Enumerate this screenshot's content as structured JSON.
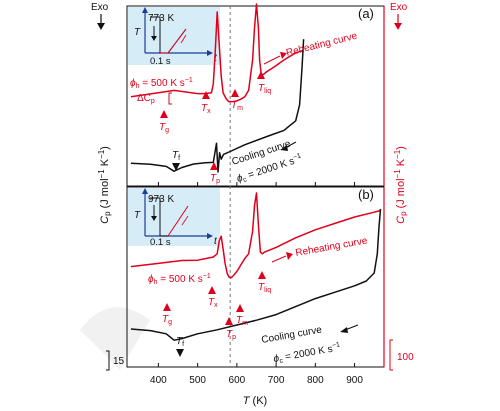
{
  "colors": {
    "reheat": "#e0001b",
    "cool": "#111111",
    "inset_bg": "#d6ecf6",
    "inset_axis": "#1f3c99"
  },
  "chart_data": [
    {
      "type": "line",
      "panel_label": "(a)",
      "xlim": [
        320,
        975
      ],
      "x_ticks": [
        400,
        500,
        600,
        700,
        800,
        900
      ],
      "vline_x": 583,
      "series": [
        {
          "name": "Reheating curve",
          "color": "#e0001b",
          "x": [
            330,
            400,
            440,
            470,
            500,
            520,
            535,
            540,
            545,
            550,
            555,
            560,
            565,
            570,
            575,
            580,
            590,
            600,
            610,
            620,
            630,
            640,
            645,
            650,
            655,
            658,
            662,
            668,
            675,
            700,
            720,
            750,
            770
          ],
          "y": [
            0.47,
            0.495,
            0.51,
            0.5,
            0.49,
            0.49,
            0.495,
            0.55,
            0.76,
            1.0,
            0.8,
            0.6,
            0.495,
            0.47,
            0.45,
            0.44,
            0.44,
            0.445,
            0.455,
            0.47,
            0.51,
            0.7,
            0.9,
            1.05,
            0.9,
            0.7,
            0.61,
            0.61,
            0.625,
            0.665,
            0.7,
            0.745,
            0.76
          ]
        },
        {
          "name": "Cooling curve",
          "color": "#111111",
          "x": [
            330,
            380,
            420,
            440,
            460,
            490,
            520,
            540,
            548,
            552,
            556,
            560,
            566,
            580,
            620,
            680,
            720,
            750,
            760,
            766,
            770
          ],
          "y": [
            0.055,
            0.048,
            0.035,
            0.005,
            0.028,
            0.05,
            0.058,
            0.06,
            0.18,
            0.0,
            0.12,
            0.08,
            0.11,
            0.125,
            0.17,
            0.225,
            0.26,
            0.32,
            0.42,
            0.65,
            0.83
          ]
        }
      ]
    },
    {
      "type": "line",
      "panel_label": "(b)",
      "xlim": [
        320,
        975
      ],
      "x_ticks": [
        400,
        500,
        600,
        700,
        800,
        900
      ],
      "vline_x": 583,
      "series": [
        {
          "name": "Reheating curve",
          "color": "#e0001b",
          "x": [
            330,
            400,
            460,
            500,
            520,
            540,
            550,
            555,
            560,
            565,
            570,
            575,
            580,
            585,
            590,
            600,
            610,
            620,
            630,
            640,
            645,
            650,
            655,
            660,
            665,
            670,
            700,
            750,
            800,
            850,
            900,
            950,
            965
          ],
          "y": [
            0.54,
            0.56,
            0.578,
            0.58,
            0.59,
            0.6,
            0.62,
            0.7,
            0.73,
            0.65,
            0.56,
            0.5,
            0.475,
            0.47,
            0.48,
            0.51,
            0.55,
            0.59,
            0.62,
            0.76,
            0.92,
            1.0,
            0.8,
            0.63,
            0.62,
            0.63,
            0.66,
            0.72,
            0.77,
            0.81,
            0.85,
            0.88,
            0.89
          ]
        },
        {
          "name": "Cooling curve",
          "color": "#111111",
          "x": [
            330,
            380,
            420,
            440,
            460,
            500,
            550,
            600,
            650,
            700,
            750,
            800,
            850,
            900,
            930,
            950,
            958,
            962,
            966
          ],
          "y": [
            0.15,
            0.14,
            0.12,
            0.08,
            0.09,
            0.12,
            0.145,
            0.175,
            0.205,
            0.24,
            0.29,
            0.34,
            0.38,
            0.42,
            0.45,
            0.5,
            0.62,
            0.78,
            0.9
          ]
        }
      ]
    }
  ],
  "panel_a": {
    "label": "(a)",
    "inset_temp": "773 K",
    "inset_time": "0.1 s",
    "inset_T": "T",
    "inset_t": "t",
    "rate_label": "ϕ",
    "rate_sub": "h",
    "rate_value": " = 500 K s",
    "rate_exp": "−1",
    "delta_cp": "ΔC",
    "delta_cp_sub": "p",
    "markers": {
      "tg": {
        "main": "T",
        "sub": "g"
      },
      "tx": {
        "main": "T",
        "sub": "x"
      },
      "tm": {
        "main": "T",
        "sub": "m"
      },
      "tliq": {
        "main": "T",
        "sub": "liq"
      },
      "tp": {
        "main": "T",
        "sub": "p"
      },
      "tf": {
        "main": "T",
        "sub": "f"
      }
    },
    "reheat_label": "Reheating curve",
    "cool_label": "Cooling curve",
    "cool_rate": "ϕ",
    "cool_rate_sub": "c",
    "cool_rate_value": " = 2000 K s",
    "cool_rate_exp": "−1"
  },
  "panel_b": {
    "label": "(b)",
    "inset_temp": "973 K",
    "inset_time": "0.1 s",
    "inset_T": "T",
    "inset_t": "t",
    "rate_label": "ϕ",
    "rate_sub": "h",
    "rate_value": " = 500 K s",
    "rate_exp": "−1",
    "markers": {
      "tg": {
        "main": "T",
        "sub": "g"
      },
      "tx": {
        "main": "T",
        "sub": "x"
      },
      "tm": {
        "main": "T",
        "sub": "m"
      },
      "tliq": {
        "main": "T",
        "sub": "liq"
      },
      "tp": {
        "main": "T",
        "sub": "p"
      },
      "tf": {
        "main": "T",
        "sub": "f"
      }
    },
    "reheat_label": "Reheating curve",
    "cool_label": "Cooling curve",
    "cool_rate": "ϕ",
    "cool_rate_sub": "c",
    "cool_rate_value": " = 2000 K s",
    "cool_rate_exp": "−1"
  },
  "left_axis": {
    "label": "C",
    "label_sub": "p",
    "label_unit": " (J mol",
    "label_exp": "−1",
    "label_unit2": " K",
    "label_exp2": "−1",
    "label_close": ")",
    "exo": "Exo",
    "scale_value": "15"
  },
  "right_axis": {
    "label": "C",
    "label_sub": "p",
    "label_unit": " (J mol",
    "label_exp": "−1",
    "label_unit2": " K",
    "label_exp2": "−1",
    "label_close": ")",
    "exo": "Exo",
    "scale_value": "100"
  },
  "x_axis": {
    "label": "T",
    "unit": " (K)"
  }
}
